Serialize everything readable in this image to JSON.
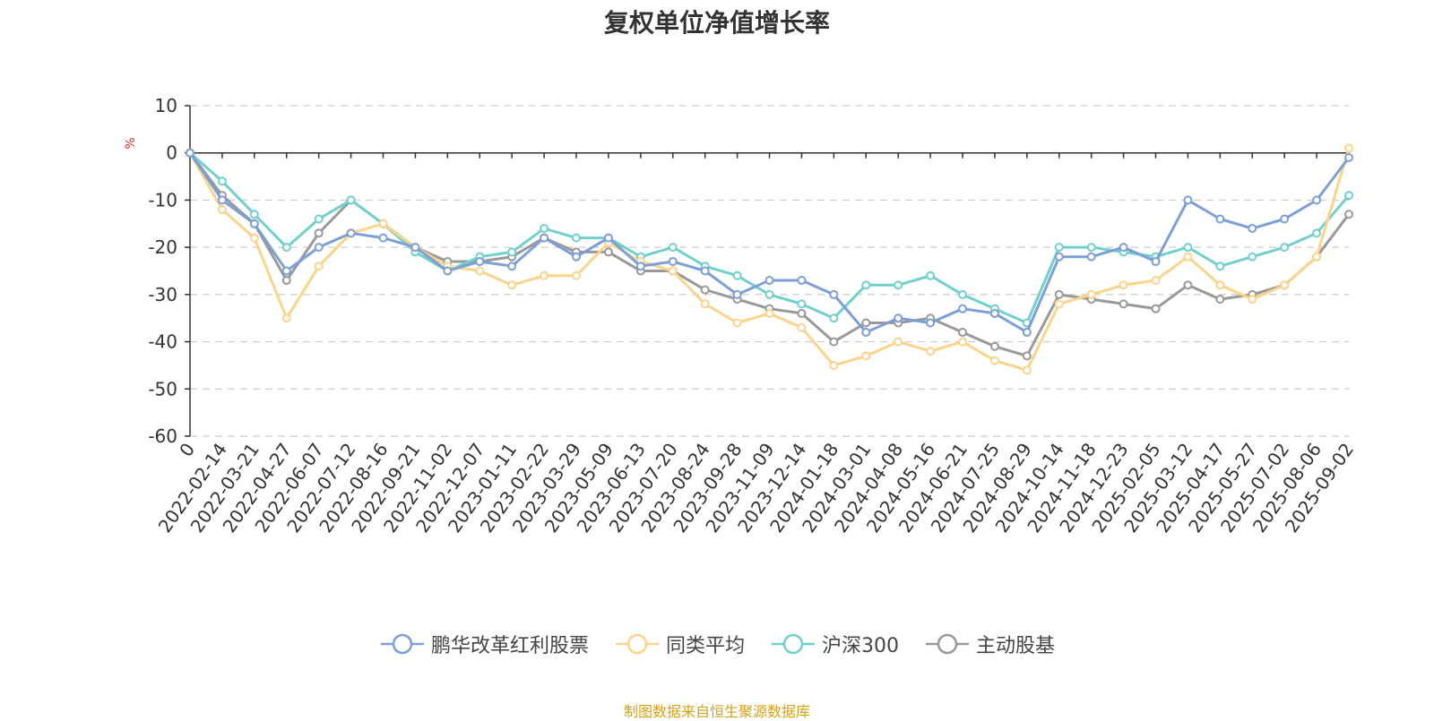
{
  "chart_data": {
    "type": "line",
    "title": "复权单位净值增长率",
    "ylabel": "%",
    "xlabel": "",
    "ylim": [
      -60,
      10
    ],
    "yticks": [
      10,
      0,
      -10,
      -20,
      -30,
      -40,
      -50,
      -60
    ],
    "grid": true,
    "legend_position": "bottom",
    "x_labels": [
      "0",
      "2022-02-14",
      "2022-03-21",
      "2022-04-27",
      "2022-06-07",
      "2022-07-12",
      "2022-08-16",
      "2022-09-21",
      "2022-11-02",
      "2022-12-07",
      "2023-01-11",
      "2023-02-22",
      "2023-03-29",
      "2023-05-09",
      "2023-06-13",
      "2023-07-20",
      "2023-08-24",
      "2023-09-28",
      "2023-11-09",
      "2023-12-14",
      "2024-01-18",
      "2024-03-01",
      "2024-04-08",
      "2024-05-16",
      "2024-06-21",
      "2024-07-25",
      "2024-08-29",
      "2024-10-14",
      "2024-11-18",
      "2024-12-23",
      "2025-02-05",
      "2025-03-12",
      "2025-04-17",
      "2025-05-27",
      "2025-07-02",
      "2025-08-06",
      "2025-09-02"
    ],
    "series": [
      {
        "name": "鹏华改革红利股票",
        "color": "#7b9fd6",
        "values": [
          0,
          -10,
          -15,
          -25,
          -20,
          -17,
          -18,
          -20,
          -25,
          -23,
          -24,
          -18,
          -22,
          -18,
          -24,
          -23,
          -25,
          -30,
          -27,
          -27,
          -30,
          -38,
          -35,
          -36,
          -33,
          -34,
          -38,
          -22,
          -22,
          -20,
          -23,
          -10,
          -14,
          -16,
          -14,
          -10,
          -1
        ]
      },
      {
        "name": "同类平均",
        "color": "#fcd38a",
        "values": [
          0,
          -12,
          -18,
          -35,
          -24,
          -17,
          -15,
          -20,
          -24,
          -25,
          -28,
          -26,
          -26,
          -19,
          -23,
          -25,
          -32,
          -36,
          -34,
          -37,
          -45,
          -43,
          -40,
          -42,
          -40,
          -44,
          -46,
          -32,
          -30,
          -28,
          -27,
          -22,
          -28,
          -31,
          -28,
          -22,
          1
        ]
      },
      {
        "name": "沪深300",
        "color": "#6fd0cc",
        "values": [
          0,
          -6,
          -13,
          -20,
          -14,
          -10,
          -15,
          -21,
          -25,
          -22,
          -21,
          -16,
          -18,
          -18,
          -22,
          -20,
          -24,
          -26,
          -30,
          -32,
          -35,
          -28,
          -28,
          -26,
          -30,
          -33,
          -36,
          -20,
          -20,
          -21,
          -22,
          -20,
          -24,
          -22,
          -20,
          -17,
          -9
        ]
      },
      {
        "name": "主动股基",
        "color": "#999999",
        "values": [
          0,
          -9,
          -15,
          -27,
          -17,
          -10,
          -15,
          -20,
          -23,
          -23,
          -22,
          -18,
          -21,
          -21,
          -25,
          -25,
          -29,
          -31,
          -33,
          -34,
          -40,
          -36,
          -36,
          -35,
          -38,
          -41,
          -43,
          -30,
          -31,
          -32,
          -33,
          -28,
          -31,
          -30,
          -28,
          -22,
          -13
        ]
      }
    ]
  },
  "source_note": "制图数据来自恒生聚源数据库"
}
